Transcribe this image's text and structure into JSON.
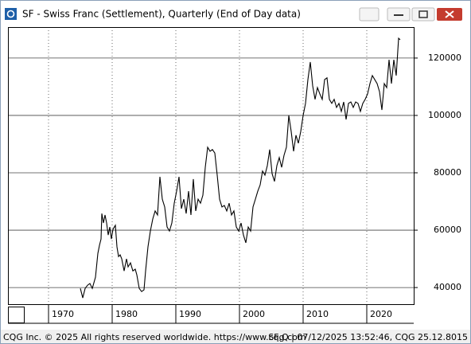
{
  "chart_data": {
    "type": "line",
    "title": "SF - Swiss Franc (Settlement), Quarterly (End of Day data)",
    "footer_left": "CQG Inc. © 2025 All rights reserved worldwide. https://www.cqg.com",
    "footer_right": "SF,Q | 07/12/2025 13:52:46, CQG 25.12.8015",
    "xlim": [
      1963.625,
      2027.375
    ],
    "xticks": [
      1970,
      1980,
      1990,
      2000,
      2010,
      2020
    ],
    "ylim": [
      34200,
      130800
    ],
    "yticks": [
      40000,
      60000,
      80000,
      100000,
      120000
    ],
    "grid": true,
    "x": [
      1975,
      1975.375,
      1975.75,
      1976.125,
      1976.5,
      1976.875,
      1977.375,
      1977.75,
      1978,
      1978.25,
      1978.375,
      1978.625,
      1978.875,
      1979.125,
      1979.375,
      1979.625,
      1979.875,
      1980.125,
      1980.5,
      1980.75,
      1981,
      1981.25,
      1981.5,
      1981.875,
      1982.25,
      1982.5,
      1982.875,
      1983.25,
      1983.625,
      1983.875,
      1984.25,
      1984.625,
      1985,
      1985.25,
      1985.625,
      1986,
      1986.375,
      1986.75,
      1987.125,
      1987.5,
      1987.875,
      1988.25,
      1988.625,
      1989,
      1989.375,
      1989.75,
      1990.125,
      1990.5,
      1990.875,
      1991.25,
      1991.625,
      1992,
      1992.375,
      1992.75,
      1993.125,
      1993.5,
      1993.875,
      1994.25,
      1994.625,
      1995,
      1995.375,
      1995.75,
      1996.125,
      1996.5,
      1996.875,
      1997.25,
      1997.625,
      1998,
      1998.375,
      1998.75,
      1999.125,
      1999.5,
      1999.875,
      2000.25,
      2000.625,
      2001,
      2001.375,
      2001.75,
      2002.125,
      2002.5,
      2002.875,
      2003.25,
      2003.625,
      2004,
      2004.375,
      2004.75,
      2005.125,
      2005.5,
      2005.875,
      2006.25,
      2006.625,
      2007,
      2007.375,
      2007.75,
      2008.125,
      2008.5,
      2008.875,
      2009.25,
      2009.625,
      2010,
      2010.375,
      2010.75,
      2011.125,
      2011.5,
      2011.875,
      2012.25,
      2012.625,
      2013,
      2013.375,
      2013.75,
      2014.125,
      2014.5,
      2014.875,
      2015.25,
      2015.625,
      2016,
      2016.375,
      2016.75,
      2017.125,
      2017.5,
      2017.875,
      2018.25,
      2018.625,
      2019,
      2019.375,
      2019.75,
      2020.125,
      2020.5,
      2020.875,
      2021.25,
      2021.625,
      2022,
      2022.375,
      2022.75,
      2023.125,
      2023.5,
      2023.875,
      2024.25,
      2024.625,
      2025,
      2025.25
    ],
    "series": [
      {
        "color": "#000000",
        "values": [
          39700,
          36400,
          39700,
          40800,
          41400,
          39700,
          43600,
          51900,
          54700,
          56900,
          65800,
          62500,
          65300,
          62500,
          58300,
          61100,
          56900,
          60300,
          61700,
          54200,
          50800,
          51400,
          50000,
          45800,
          50000,
          47200,
          48600,
          45800,
          46400,
          44400,
          39700,
          38600,
          39200,
          45800,
          54200,
          59700,
          63900,
          66700,
          65300,
          78600,
          70800,
          68100,
          61100,
          59700,
          62500,
          69400,
          73600,
          78600,
          67500,
          70800,
          65800,
          73600,
          65300,
          77800,
          66700,
          70800,
          69400,
          72200,
          81900,
          88900,
          87500,
          88100,
          86900,
          79200,
          70800,
          68100,
          68600,
          66700,
          69400,
          65300,
          66700,
          61100,
          59700,
          62500,
          58300,
          55600,
          61100,
          59700,
          68100,
          70800,
          73600,
          75800,
          80600,
          79200,
          82500,
          88100,
          79700,
          77000,
          82500,
          85300,
          81900,
          86100,
          88900,
          100000,
          94400,
          87500,
          93100,
          90300,
          94400,
          100000,
          104200,
          112500,
          118600,
          110300,
          105600,
          109700,
          107500,
          105600,
          112500,
          113100,
          105600,
          104200,
          105600,
          102800,
          104200,
          101400,
          104700,
          98600,
          104200,
          104700,
          102800,
          104700,
          104200,
          101400,
          104200,
          105600,
          107500,
          111100,
          113900,
          112500,
          111100,
          108300,
          101900,
          111100,
          109700,
          119400,
          111100,
          119400,
          113900,
          126900,
          126400
        ]
      }
    ]
  }
}
